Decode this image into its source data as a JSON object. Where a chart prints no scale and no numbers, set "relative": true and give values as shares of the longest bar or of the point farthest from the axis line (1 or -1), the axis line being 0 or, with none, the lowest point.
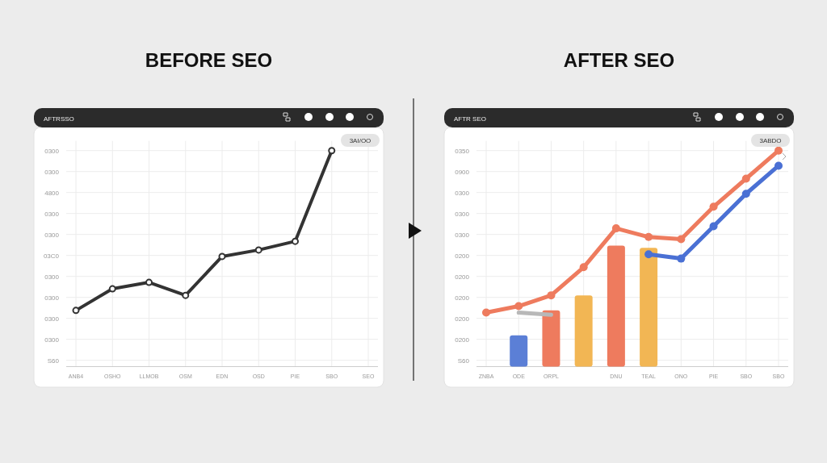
{
  "chart_data": [
    {
      "type": "line",
      "title": "BEFORE SEO",
      "subtitle": "AFTRSSO",
      "relative": true,
      "annotations": [
        "3AI/OO",
        "S60",
        "0300",
        "0300",
        "0300",
        "0300",
        "03C0",
        "0300",
        "0300",
        "4800",
        "0300",
        "0300"
      ],
      "categories": [
        "ANB4",
        "OSHO",
        "LLMOB",
        "OSM",
        "EDN",
        "OSD",
        "PIE",
        "SBO",
        "SEO"
      ],
      "grid": true,
      "marker": "circle",
      "series": [
        {
          "color": "#333333",
          "values": [
            0.26,
            0.36,
            0.39,
            0.33,
            0.51,
            0.54,
            0.58,
            1,
            null
          ]
        }
      ]
    },
    {
      "type": "line",
      "title": "AFTER SEO",
      "subtitle": "AFTR SEO",
      "relative": true,
      "annotations": [
        "3ABDO",
        "S60",
        "0200",
        "0200",
        "0200",
        "0200",
        "0200",
        "0300",
        "0300",
        "0300",
        "0900",
        "0350"
      ],
      "categories": [
        "ZNBA",
        "ODE",
        "ORPL",
        null,
        "DNU",
        "TEAL",
        "ONO",
        "PIE",
        "SBO",
        "SBO"
      ],
      "grid": true,
      "marker": "circle",
      "series": [
        {
          "type": "bar",
          "values": [
            null,
            0.145,
            0.26,
            0.33,
            0.56,
            0.55,
            null,
            null,
            null,
            null
          ],
          "colors": [
            null,
            "#5b7fd6",
            "#ee7b5e",
            "#f2b654",
            "#ee7b5e",
            "#f2b654",
            null,
            null,
            null,
            null
          ]
        },
        {
          "color": "#b8b8b8",
          "marker": "none",
          "values": [
            null,
            0.25,
            0.24,
            null,
            null,
            null,
            null,
            null,
            null,
            null
          ]
        },
        {
          "color": "#ee7b5e",
          "values": [
            0.25,
            0.28,
            0.33,
            0.46,
            0.64,
            0.6,
            0.59,
            0.74,
            0.87,
            1
          ]
        },
        {
          "color": "#4a70d4",
          "values": [
            null,
            null,
            null,
            null,
            null,
            0.52,
            0.5,
            0.65,
            0.8,
            0.93
          ]
        }
      ]
    }
  ]
}
